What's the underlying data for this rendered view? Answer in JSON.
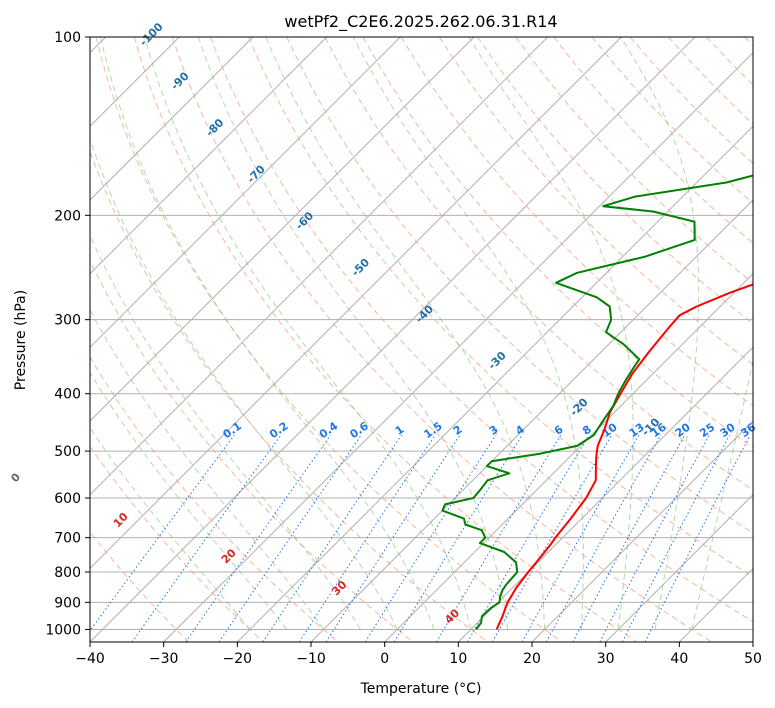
{
  "chart_data": {
    "type": "line",
    "title": "wetPf2_C2E6.2025.262.06.31.R14",
    "xlabel": "Temperature (°C)",
    "ylabel": "Pressure (hPa)",
    "xlim": [
      -40,
      50
    ],
    "ylim": [
      1050,
      100
    ],
    "y_scale": "log",
    "xticks": [
      -40,
      -30,
      -20,
      -10,
      0,
      10,
      20,
      30,
      40,
      50
    ],
    "yticks": [
      1000,
      900,
      800,
      700,
      600,
      500,
      400,
      300,
      200,
      100
    ],
    "grid": true,
    "series": [
      {
        "role": "temperature",
        "color": "#ff0000",
        "points": [
          [
            13.5,
            1000
          ],
          [
            12.5,
            950
          ],
          [
            11.3,
            900
          ],
          [
            10.5,
            850
          ],
          [
            10.0,
            800
          ],
          [
            9.6,
            750
          ],
          [
            9.3,
            720
          ],
          [
            9.0,
            700
          ],
          [
            8.5,
            650
          ],
          [
            7.8,
            600
          ],
          [
            6.7,
            560
          ],
          [
            4.8,
            530
          ],
          [
            3.5,
            510
          ],
          [
            2.3,
            490
          ],
          [
            1.0,
            460
          ],
          [
            -0.6,
            430
          ],
          [
            -1.7,
            400
          ],
          [
            -2.8,
            370
          ],
          [
            -3.5,
            340
          ],
          [
            -4.1,
            310
          ],
          [
            -4.3,
            295
          ],
          [
            -3.2,
            285
          ],
          [
            -0.5,
            270
          ],
          [
            3.0,
            255
          ],
          [
            6.5,
            230
          ],
          [
            8.5,
            215
          ],
          [
            10.5,
            200
          ],
          [
            11.6,
            185
          ],
          [
            11.7,
            170
          ],
          [
            12.3,
            160
          ],
          [
            13.8,
            152
          ],
          [
            15.5,
            140
          ],
          [
            17.0,
            130
          ],
          [
            19.5,
            122
          ],
          [
            22.0,
            118
          ],
          [
            24.0,
            112
          ],
          [
            26.5,
            106
          ],
          [
            28.0,
            102
          ],
          [
            28.8,
            100
          ]
        ]
      },
      {
        "role": "dewpoint",
        "color": "#008000",
        "points": [
          [
            10.7,
            1000
          ],
          [
            10.5,
            975
          ],
          [
            9.7,
            950
          ],
          [
            9.8,
            920
          ],
          [
            10.2,
            900
          ],
          [
            9.5,
            880
          ],
          [
            9.0,
            860
          ],
          [
            8.7,
            840
          ],
          [
            8.5,
            800
          ],
          [
            7.0,
            770
          ],
          [
            4.0,
            740
          ],
          [
            -0.5,
            715
          ],
          [
            -0.5,
            700
          ],
          [
            -2.0,
            680
          ],
          [
            -5.0,
            665
          ],
          [
            -6.0,
            650
          ],
          [
            -10.0,
            630
          ],
          [
            -10.5,
            615
          ],
          [
            -7.5,
            600
          ],
          [
            -7.7,
            580
          ],
          [
            -8.0,
            560
          ],
          [
            -6.0,
            545
          ],
          [
            -10.0,
            530
          ],
          [
            -10.0,
            520
          ],
          [
            -4.5,
            505
          ],
          [
            -0.5,
            490
          ],
          [
            0.3,
            470
          ],
          [
            -0.5,
            440
          ],
          [
            -1.0,
            420
          ],
          [
            -2.0,
            400
          ],
          [
            -2.8,
            380
          ],
          [
            -3.5,
            360
          ],
          [
            -3.8,
            350
          ],
          [
            -8.0,
            330
          ],
          [
            -12.0,
            315
          ],
          [
            -13.0,
            300
          ],
          [
            -15.0,
            285
          ],
          [
            -18.0,
            275
          ],
          [
            -25.5,
            260
          ],
          [
            -24.0,
            250
          ],
          [
            -17.0,
            235
          ],
          [
            -12.5,
            220
          ],
          [
            -15.0,
            205
          ],
          [
            -22.0,
            197
          ],
          [
            -29.5,
            193
          ],
          [
            -26.5,
            186
          ],
          [
            -16.0,
            176
          ],
          [
            -9.5,
            165
          ],
          [
            -9.0,
            155
          ],
          [
            -9.5,
            145
          ],
          [
            -8.0,
            135
          ],
          [
            -6.0,
            125
          ],
          [
            -5.0,
            115
          ],
          [
            -3.0,
            107
          ],
          [
            0.5,
            100
          ]
        ]
      }
    ],
    "dry_adiabat_labels": [
      "-100",
      "-90",
      "-80",
      "-70",
      "-60",
      "-50",
      "-40",
      "-30",
      "-20",
      "-10",
      "0",
      "10",
      "20",
      "30",
      "40"
    ],
    "mixing_ratio_labels": [
      "0.1",
      "0.2",
      "0.4",
      "0.6",
      "1",
      "1.5",
      "2",
      "3",
      "4",
      "6",
      "8",
      "10",
      "13",
      "16",
      "20",
      "25",
      "30",
      "36"
    ],
    "colors": {
      "temperature": "#ff0000",
      "dewpoint": "#008000",
      "isotherm_grid": "#b0b0b0",
      "dry_adiabat": "#f4a582",
      "moist_adiabat": "#7fbf7b",
      "mixing_ratio": "#1f77e4",
      "cold_adiabat_label": "#1f6fa8",
      "warm_adiabat_label": "#d62728",
      "zero_label": "#666666",
      "thick_curve": "#d2b48c"
    }
  }
}
